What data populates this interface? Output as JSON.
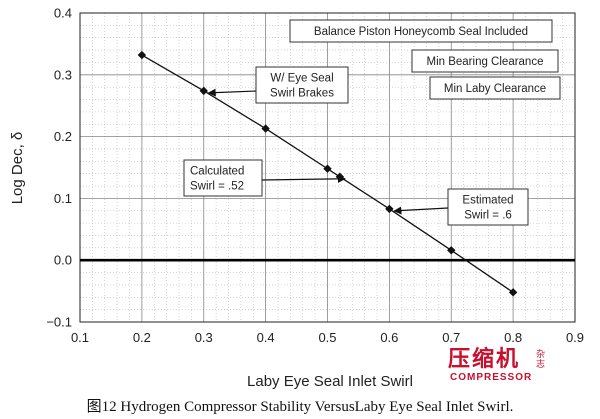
{
  "chart_data": {
    "type": "line",
    "xlabel": "Laby Eye Seal Inlet Swirl",
    "ylabel": "Log Dec, δ",
    "xlim": [
      0.1,
      0.9
    ],
    "ylim": [
      -0.1,
      0.4
    ],
    "xticks": [
      "0.1",
      "0.2",
      "0.3",
      "0.4",
      "0.5",
      "0.6",
      "0.7",
      "0.8",
      "0.9"
    ],
    "yticks": [
      "−0.1",
      "0.0",
      "0.1",
      "0.2",
      "0.3",
      "0.4"
    ],
    "xtick_values": [
      0.1,
      0.2,
      0.3,
      0.4,
      0.5,
      0.6,
      0.7,
      0.8,
      0.9
    ],
    "ytick_values": [
      -0.1,
      0.0,
      0.1,
      0.2,
      0.3,
      0.4
    ],
    "grid": true,
    "zero_line": true,
    "series": [
      {
        "x": [
          0.2,
          0.3,
          0.4,
          0.5,
          0.52,
          0.6,
          0.7,
          0.8
        ],
        "y": [
          0.332,
          0.274,
          0.213,
          0.148,
          0.135,
          0.083,
          0.016,
          -0.052
        ]
      }
    ],
    "annotations": [
      {
        "lines": [
          "Balance Piston Honeycomb Seal Included"
        ],
        "arrow": false
      },
      {
        "lines": [
          "Min Bearing Clearance"
        ],
        "arrow": false
      },
      {
        "lines": [
          "Min Laby Clearance"
        ],
        "arrow": false
      },
      {
        "lines": [
          "W/ Eye Seal",
          "Swirl Brakes"
        ],
        "arrow": true,
        "target": [
          0.3,
          0.274
        ]
      },
      {
        "lines": [
          "Calculated",
          "Swirl = .52"
        ],
        "arrow": true,
        "target": [
          0.52,
          0.135
        ]
      },
      {
        "lines": [
          "Estimated",
          "Swirl = .6"
        ],
        "arrow": true,
        "target": [
          0.6,
          0.083
        ]
      }
    ]
  },
  "caption": "图12  Hydrogen Compressor Stability VersusLaby Eye Seal Inlet Swirl.",
  "watermark": {
    "cn": "压缩机",
    "en": "COMPRESSOR",
    "side": "杂志"
  }
}
